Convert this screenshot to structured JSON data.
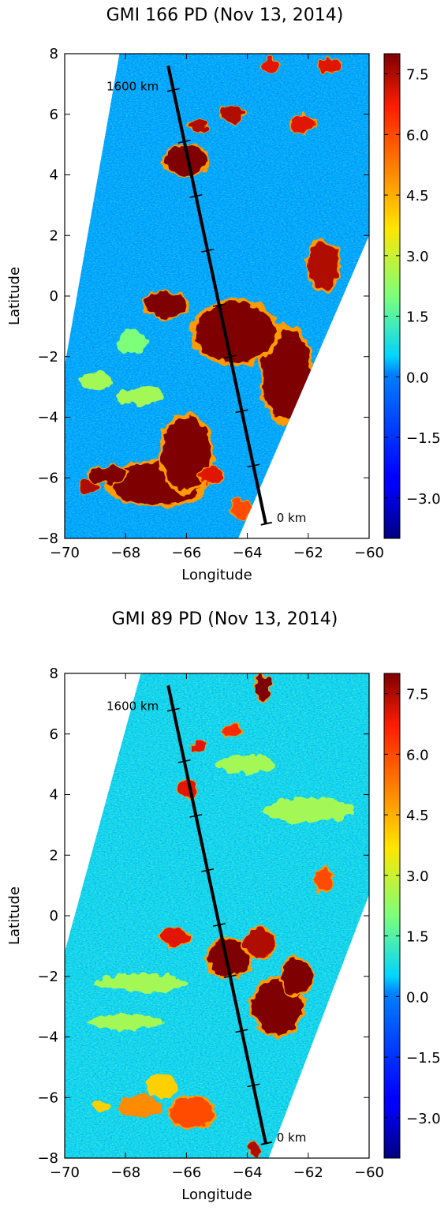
{
  "chart_data": [
    {
      "type": "heatmap",
      "title": "GMI 166 PD (Nov 13, 2014)",
      "xlabel": "Longitude",
      "ylabel": "Latitude",
      "xlim": [
        -70,
        -60
      ],
      "ylim": [
        -8,
        8
      ],
      "xticks": [
        -70,
        -68,
        -66,
        -64,
        -62,
        -60
      ],
      "yticks": [
        -8,
        -6,
        -4,
        -2,
        0,
        2,
        4,
        6,
        8
      ],
      "colorbar": {
        "colormap": "jet",
        "range": [
          -4,
          8
        ],
        "ticks": [
          7.5,
          6.0,
          4.5,
          3.0,
          1.5,
          0.0,
          -1.5,
          -3.0
        ],
        "tick_labels": [
          "7.5",
          "6.0",
          "4.5",
          "3.0",
          "1.5",
          "0.0",
          "−1.5",
          "−3.0"
        ]
      },
      "background_level": 0.3,
      "swath_outline": [
        [
          -68.2,
          8
        ],
        [
          -60,
          8
        ],
        [
          -60,
          2.0
        ],
        [
          -64.3,
          -8
        ],
        [
          -70,
          -8
        ],
        [
          -70,
          -2.3
        ]
      ],
      "transect": {
        "start": {
          "lon": -63.4,
          "lat": -7.5,
          "label": "0 km"
        },
        "end": {
          "lon": -66.6,
          "lat": 7.6,
          "label": "1600 km"
        },
        "tick_lats": [
          -5.6,
          -3.8,
          -2.0,
          -0.3,
          1.5,
          3.3,
          5.1,
          6.8
        ]
      },
      "features": [
        {
          "lon": -67.0,
          "lat": -6.2,
          "rx": 1.5,
          "ry": 0.7,
          "value": 8
        },
        {
          "lon": -66.0,
          "lat": -5.2,
          "rx": 0.8,
          "ry": 1.2,
          "value": 8
        },
        {
          "lon": -68.6,
          "lat": -5.9,
          "rx": 0.6,
          "ry": 0.3,
          "value": 8
        },
        {
          "lon": -69.2,
          "lat": -6.3,
          "rx": 0.3,
          "ry": 0.2,
          "value": 7.5
        },
        {
          "lon": -65.2,
          "lat": -5.9,
          "rx": 0.4,
          "ry": 0.3,
          "value": 7
        },
        {
          "lon": -62.7,
          "lat": -2.6,
          "rx": 0.8,
          "ry": 1.5,
          "value": 8
        },
        {
          "lon": -64.4,
          "lat": -1.2,
          "rx": 1.3,
          "ry": 1.0,
          "value": 8
        },
        {
          "lon": -66.7,
          "lat": -0.3,
          "rx": 0.7,
          "ry": 0.4,
          "value": 8
        },
        {
          "lon": -61.5,
          "lat": 1.0,
          "rx": 0.5,
          "ry": 0.8,
          "value": 7.5
        },
        {
          "lon": -66.0,
          "lat": 4.5,
          "rx": 0.7,
          "ry": 0.5,
          "value": 8
        },
        {
          "lon": -65.6,
          "lat": 5.6,
          "rx": 0.3,
          "ry": 0.2,
          "value": 7.5
        },
        {
          "lon": -64.5,
          "lat": 6.0,
          "rx": 0.4,
          "ry": 0.3,
          "value": 7.5
        },
        {
          "lon": -62.2,
          "lat": 5.7,
          "rx": 0.4,
          "ry": 0.3,
          "value": 7
        },
        {
          "lon": -63.2,
          "lat": 7.6,
          "rx": 0.3,
          "ry": 0.2,
          "value": 7
        },
        {
          "lon": -61.3,
          "lat": 7.6,
          "rx": 0.4,
          "ry": 0.2,
          "value": 7
        },
        {
          "lon": -64.2,
          "lat": -7.0,
          "rx": 0.3,
          "ry": 0.3,
          "value": 6
        },
        {
          "lon": -67.5,
          "lat": -3.3,
          "rx": 0.8,
          "ry": 0.3,
          "value": 2.5
        },
        {
          "lon": -69.0,
          "lat": -2.8,
          "rx": 0.5,
          "ry": 0.3,
          "value": 2.5
        },
        {
          "lon": -67.8,
          "lat": -1.5,
          "rx": 0.5,
          "ry": 0.4,
          "value": 2
        }
      ]
    },
    {
      "type": "heatmap",
      "title": "GMI 89 PD (Nov 13, 2014)",
      "xlabel": "Longitude",
      "ylabel": "Latitude",
      "xlim": [
        -70,
        -60
      ],
      "ylim": [
        -8,
        8
      ],
      "xticks": [
        -70,
        -68,
        -66,
        -64,
        -62,
        -60
      ],
      "yticks": [
        -8,
        -6,
        -4,
        -2,
        0,
        2,
        4,
        6,
        8
      ],
      "colorbar": {
        "colormap": "jet",
        "range": [
          -4,
          8
        ],
        "ticks": [
          7.5,
          6.0,
          4.5,
          3.0,
          1.5,
          0.0,
          -1.5,
          -3.0
        ],
        "tick_labels": [
          "7.5",
          "6.0",
          "4.5",
          "3.0",
          "1.5",
          "0.0",
          "−1.5",
          "−3.0"
        ]
      },
      "background_level": 0.7,
      "swath_outline": [
        [
          -67.5,
          8
        ],
        [
          -60,
          8
        ],
        [
          -60,
          0.7
        ],
        [
          -63.3,
          -8
        ],
        [
          -70,
          -8
        ],
        [
          -70,
          -1.2
        ]
      ],
      "transect": {
        "start": {
          "lon": -63.4,
          "lat": -7.5,
          "label": "0 km"
        },
        "end": {
          "lon": -66.6,
          "lat": 7.6,
          "label": "1600 km"
        },
        "tick_lats": [
          -5.6,
          -3.8,
          -2.0,
          -0.3,
          1.5,
          3.3,
          5.1,
          6.8
        ]
      },
      "features": [
        {
          "lon": -63.0,
          "lat": -3.0,
          "rx": 0.8,
          "ry": 0.9,
          "value": 8
        },
        {
          "lon": -62.4,
          "lat": -2.0,
          "rx": 0.5,
          "ry": 0.6,
          "value": 8
        },
        {
          "lon": -64.6,
          "lat": -1.4,
          "rx": 0.7,
          "ry": 0.6,
          "value": 8
        },
        {
          "lon": -63.6,
          "lat": -0.9,
          "rx": 0.5,
          "ry": 0.5,
          "value": 7.5
        },
        {
          "lon": -66.4,
          "lat": -0.7,
          "rx": 0.5,
          "ry": 0.3,
          "value": 7
        },
        {
          "lon": -63.5,
          "lat": 7.5,
          "rx": 0.25,
          "ry": 0.4,
          "value": 8
        },
        {
          "lon": -66.0,
          "lat": 4.2,
          "rx": 0.3,
          "ry": 0.3,
          "value": 7
        },
        {
          "lon": -65.6,
          "lat": 5.6,
          "rx": 0.2,
          "ry": 0.2,
          "value": 7
        },
        {
          "lon": -64.5,
          "lat": 6.1,
          "rx": 0.3,
          "ry": 0.25,
          "value": 6.5
        },
        {
          "lon": -61.5,
          "lat": 1.2,
          "rx": 0.3,
          "ry": 0.4,
          "value": 6
        },
        {
          "lon": -63.8,
          "lat": -7.7,
          "rx": 0.2,
          "ry": 0.25,
          "value": 7.5
        },
        {
          "lon": -65.8,
          "lat": -6.5,
          "rx": 0.7,
          "ry": 0.5,
          "value": 6
        },
        {
          "lon": -67.5,
          "lat": -6.3,
          "rx": 0.7,
          "ry": 0.4,
          "value": 5
        },
        {
          "lon": -66.8,
          "lat": -5.6,
          "rx": 0.5,
          "ry": 0.4,
          "value": 4
        },
        {
          "lon": -68.8,
          "lat": -6.3,
          "rx": 0.3,
          "ry": 0.2,
          "value": 4
        },
        {
          "lon": -67.5,
          "lat": -2.2,
          "rx": 1.5,
          "ry": 0.3,
          "value": 2.5
        },
        {
          "lon": -68.0,
          "lat": -3.5,
          "rx": 1.2,
          "ry": 0.25,
          "value": 2.5
        },
        {
          "lon": -62.0,
          "lat": 3.5,
          "rx": 1.5,
          "ry": 0.4,
          "value": 2.5
        },
        {
          "lon": -64.0,
          "lat": 5.0,
          "rx": 1.0,
          "ry": 0.3,
          "value": 2.5
        }
      ]
    }
  ]
}
